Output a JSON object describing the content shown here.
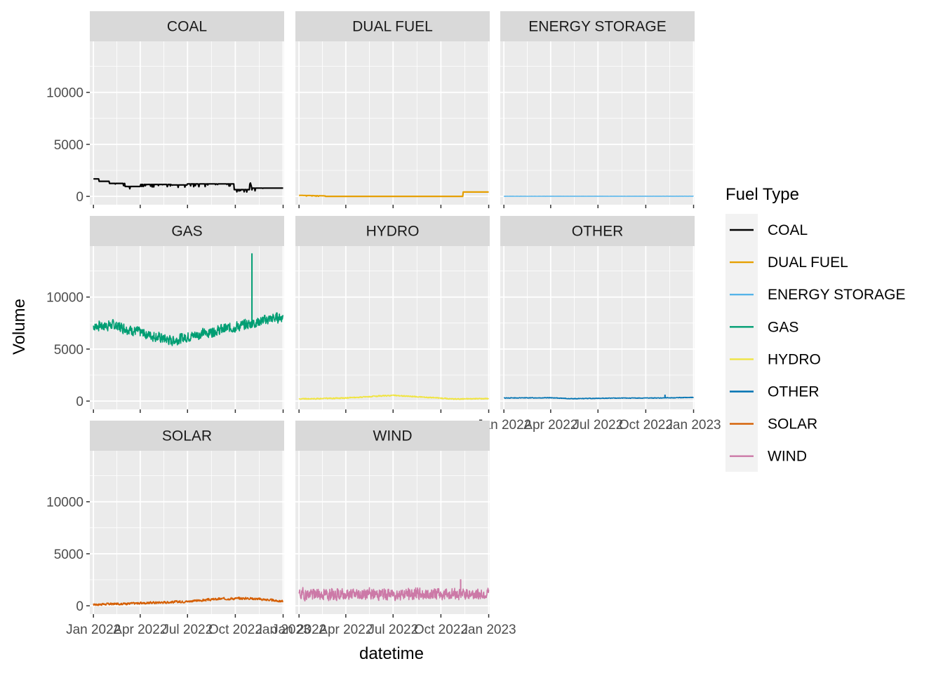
{
  "chart_data": {
    "type": "line",
    "faceted": true,
    "xlabel": "datetime",
    "ylabel": "Volume",
    "ylim": [
      -800,
      14900
    ],
    "y_ticks": [
      0,
      5000,
      10000
    ],
    "x_range_days": [
      -7,
      367
    ],
    "x_ticks": [
      {
        "label": "Jan 2022",
        "day": 0
      },
      {
        "label": "Apr 2022",
        "day": 90
      },
      {
        "label": "Jul 2022",
        "day": 181
      },
      {
        "label": "Oct 2022",
        "day": 273
      },
      {
        "label": "Jan 2023",
        "day": 365
      }
    ],
    "legend": {
      "title": "Fuel Type",
      "position": "right"
    },
    "series": [
      {
        "name": "COAL",
        "color": "#000000",
        "kind": "step",
        "points": [
          [
            0,
            1680
          ],
          [
            10,
            1680
          ],
          [
            10,
            1450
          ],
          [
            30,
            1450
          ],
          [
            30,
            1250
          ],
          [
            60,
            1250
          ],
          [
            60,
            950
          ],
          [
            90,
            950
          ],
          [
            90,
            1150
          ],
          [
            150,
            1150
          ],
          [
            150,
            1100
          ],
          [
            180,
            1100
          ],
          [
            180,
            1200
          ],
          [
            270,
            1200
          ],
          [
            270,
            650
          ],
          [
            300,
            650
          ],
          [
            300,
            1600
          ],
          [
            305,
            800
          ],
          [
            365,
            800
          ]
        ],
        "noise": {
          "amp": 280,
          "day_range": [
            40,
            330
          ],
          "seed": 11
        }
      },
      {
        "name": "DUAL FUEL",
        "color": "#E69F00",
        "kind": "step",
        "points": [
          [
            0,
            100
          ],
          [
            50,
            50
          ],
          [
            50,
            0
          ],
          [
            315,
            0
          ],
          [
            315,
            420
          ],
          [
            365,
            420
          ]
        ],
        "noise": {
          "amp": 60,
          "day_range": [
            0,
            50
          ],
          "seed": 3
        }
      },
      {
        "name": "ENERGY STORAGE",
        "color": "#56B4E9",
        "kind": "noisy",
        "points": [
          [
            0,
            10
          ],
          [
            365,
            15
          ]
        ],
        "noise": {
          "amp": 15,
          "day_range": [
            0,
            365
          ],
          "seed": 5
        }
      },
      {
        "name": "GAS",
        "color": "#009E73",
        "kind": "noisy",
        "points": [
          [
            0,
            7200
          ],
          [
            40,
            7300
          ],
          [
            90,
            6600
          ],
          [
            150,
            5800
          ],
          [
            200,
            6400
          ],
          [
            260,
            7000
          ],
          [
            300,
            7400
          ],
          [
            340,
            7900
          ],
          [
            365,
            8100
          ]
        ],
        "noise": {
          "amp": 1300,
          "day_range": [
            0,
            365
          ],
          "seed": 7
        },
        "spikes": [
          [
            305,
            14200
          ]
        ]
      },
      {
        "name": "HYDRO",
        "color": "#F0E442",
        "kind": "noisy",
        "points": [
          [
            0,
            200
          ],
          [
            90,
            300
          ],
          [
            180,
            550
          ],
          [
            240,
            380
          ],
          [
            300,
            200
          ],
          [
            365,
            250
          ]
        ],
        "noise": {
          "amp": 150,
          "day_range": [
            0,
            365
          ],
          "seed": 9
        }
      },
      {
        "name": "OTHER",
        "color": "#0072B2",
        "kind": "noisy",
        "points": [
          [
            0,
            300
          ],
          [
            90,
            320
          ],
          [
            130,
            230
          ],
          [
            200,
            280
          ],
          [
            300,
            300
          ],
          [
            365,
            350
          ]
        ],
        "noise": {
          "amp": 80,
          "day_range": [
            0,
            365
          ],
          "seed": 13
        },
        "spikes": [
          [
            310,
            620
          ]
        ]
      },
      {
        "name": "SOLAR",
        "color": "#D55E00",
        "kind": "noisy",
        "points": [
          [
            0,
            120
          ],
          [
            90,
            250
          ],
          [
            180,
            420
          ],
          [
            250,
            680
          ],
          [
            300,
            720
          ],
          [
            330,
            600
          ],
          [
            365,
            420
          ]
        ],
        "noise": {
          "amp": 300,
          "day_range": [
            0,
            365
          ],
          "seed": 17
        }
      },
      {
        "name": "WIND",
        "color": "#CC79A7",
        "kind": "noisy",
        "points": [
          [
            0,
            1100
          ],
          [
            365,
            1150
          ]
        ],
        "noise": {
          "amp": 1500,
          "day_range": [
            0,
            365
          ],
          "seed": 19
        },
        "spikes": [
          [
            311,
            2550
          ]
        ]
      }
    ]
  }
}
